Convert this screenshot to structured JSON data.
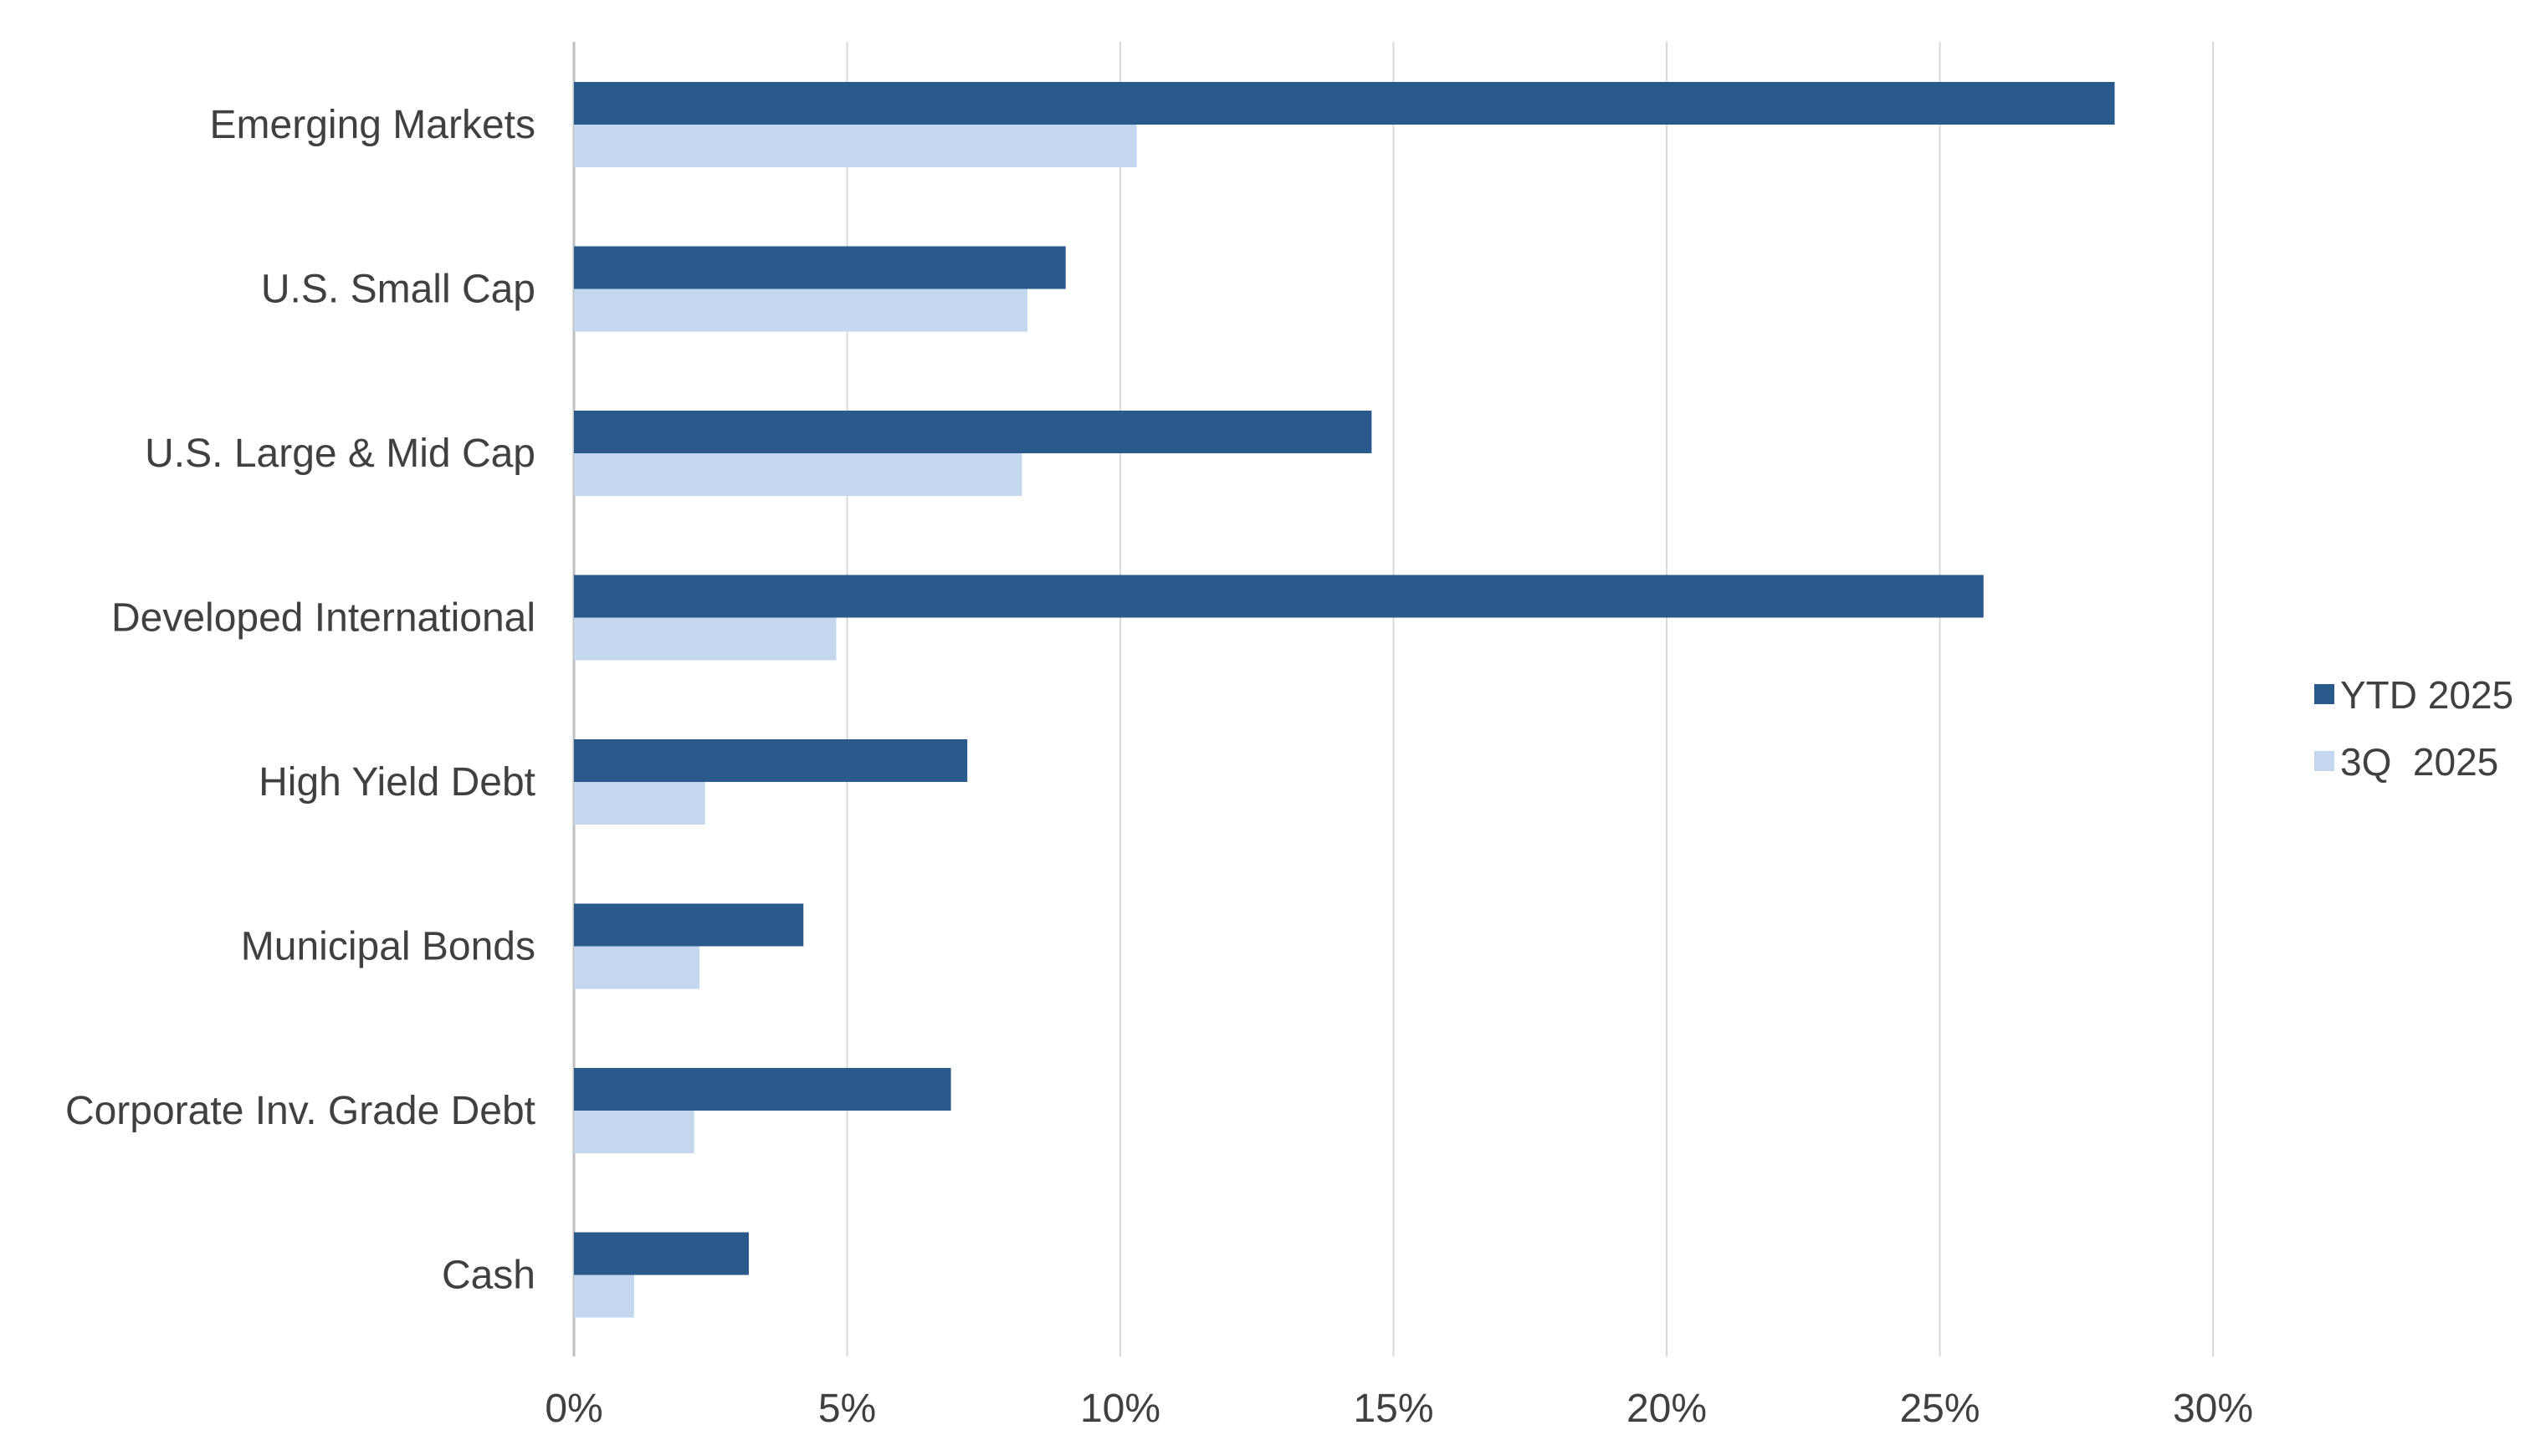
{
  "chart_data": {
    "type": "bar",
    "orientation": "horizontal",
    "title": "",
    "xlabel": "",
    "ylabel": "",
    "categories": [
      "Emerging Markets",
      "U.S. Small Cap",
      "U.S. Large & Mid Cap",
      "Developed International",
      "High Yield Debt",
      "Municipal Bonds",
      "Corporate Inv. Grade Debt",
      "Cash"
    ],
    "series": [
      {
        "name": "YTD 2025",
        "color": "#2a598c",
        "values": [
          28.2,
          9.0,
          14.6,
          25.8,
          7.2,
          4.2,
          6.9,
          3.2
        ]
      },
      {
        "name": "3Q  2025",
        "color": "#c5d6ef",
        "values": [
          10.3,
          8.3,
          8.2,
          4.8,
          2.4,
          2.3,
          2.2,
          1.1
        ]
      }
    ],
    "xlim": [
      0,
      30
    ],
    "ticks": [
      0,
      5,
      10,
      15,
      20,
      25,
      30
    ],
    "tick_labels": [
      "0%",
      "5%",
      "10%",
      "15%",
      "20%",
      "25%",
      "30%"
    ],
    "grid": "vertical",
    "gridline_color": "#d9d9d9",
    "legend_position": "right"
  }
}
